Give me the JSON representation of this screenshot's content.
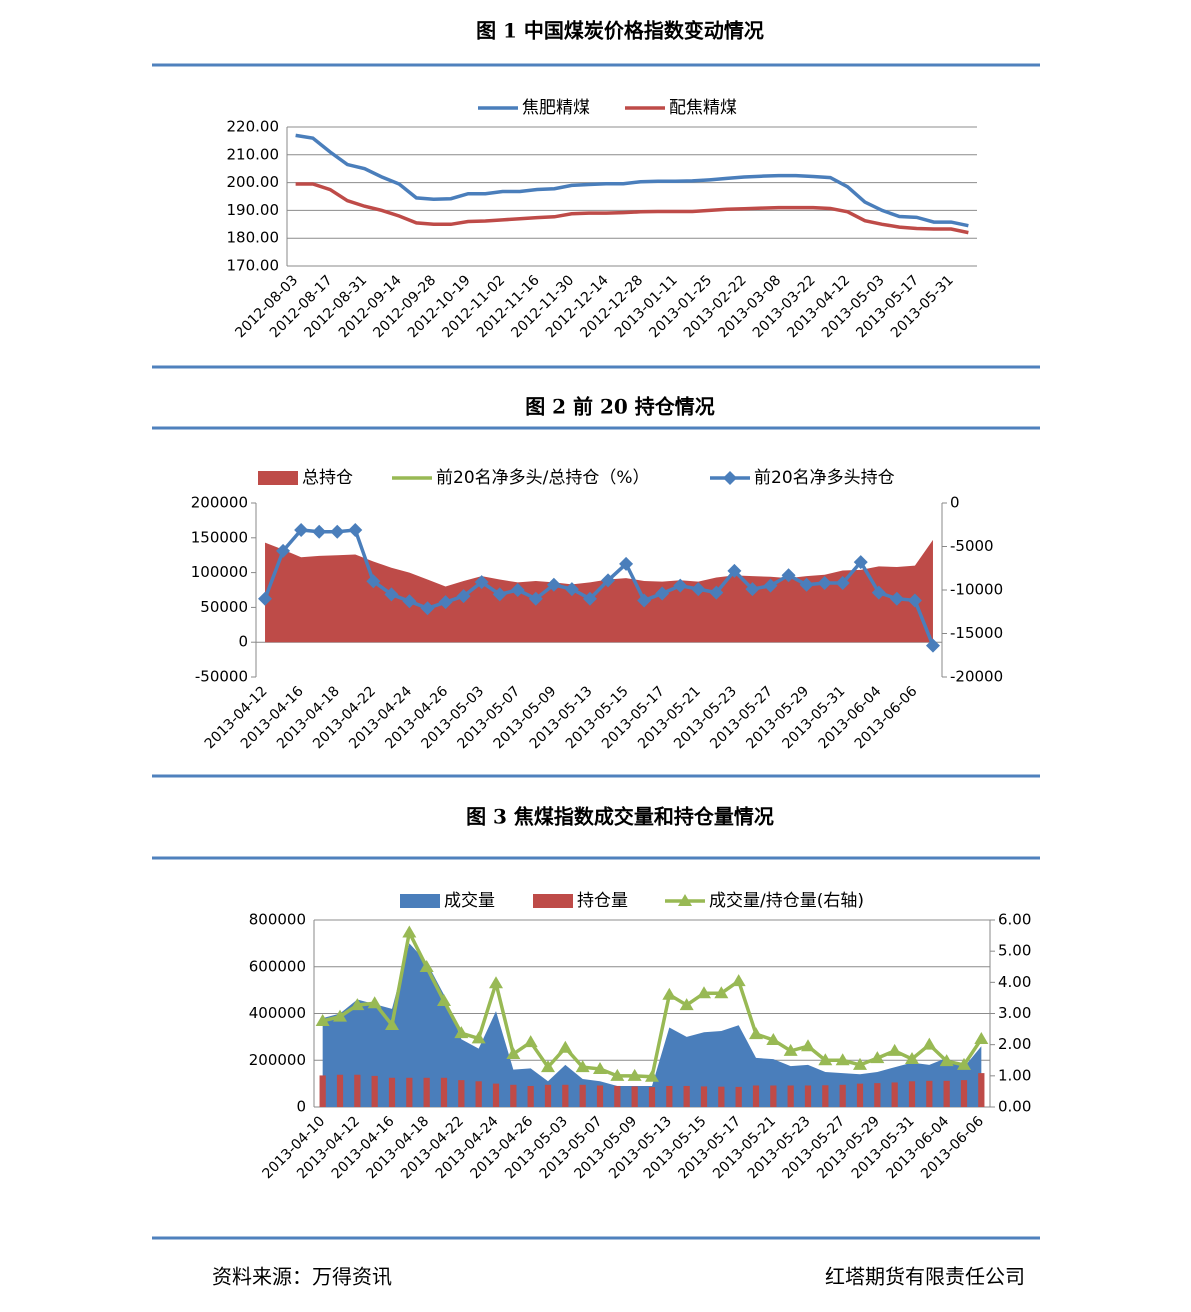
{
  "titles": [
    "图 1 中国煤炭价格指数变动情况",
    "图 2  前 20 持仓情况",
    "图 3 焦煤指数成交量和持仓量情况"
  ],
  "footer": {
    "source": "资料来源：万得资讯",
    "company": "红塔期货有限责任公司"
  },
  "chart_data": [
    {
      "type": "line",
      "grid": true,
      "categories": [
        "2012-08-03",
        null,
        "2012-08-17",
        null,
        "2012-08-31",
        null,
        "2012-09-14",
        null,
        "2012-09-28",
        null,
        "2012-10-19",
        null,
        "2012-11-02",
        null,
        "2012-11-16",
        null,
        "2012-11-30",
        null,
        "2012-12-14",
        null,
        "2012-12-28",
        null,
        "2013-01-11",
        null,
        "2013-01-25",
        null,
        "2013-02-22",
        null,
        "2013-03-08",
        null,
        "2013-03-22",
        null,
        "2013-04-12",
        null,
        "2013-05-03",
        null,
        "2013-05-17",
        null,
        "2013-05-31",
        null
      ],
      "series": [
        {
          "name": "焦肥精煤",
          "type": "line",
          "color": "#4a7ebb",
          "values": [
            217,
            216,
            211,
            206.5,
            205,
            202,
            199.5,
            194.5,
            194,
            194.2,
            196,
            196,
            196.8,
            196.8,
            197.5,
            197.8,
            199,
            199.3,
            199.6,
            199.6,
            200.3,
            200.5,
            200.5,
            200.6,
            201,
            201.5,
            202,
            202.3,
            202.5,
            202.5,
            202.2,
            201.8,
            198.5,
            193,
            190,
            187.8,
            187.5,
            185.8,
            185.8,
            184.5
          ]
        },
        {
          "name": "配焦精煤",
          "type": "line",
          "color": "#be4b48",
          "values": [
            199.5,
            199.5,
            197.5,
            193.5,
            191.5,
            190,
            188,
            185.5,
            185,
            185,
            186,
            186.2,
            186.6,
            187,
            187.4,
            187.7,
            188.8,
            189,
            189,
            189.2,
            189.5,
            189.6,
            189.6,
            189.6,
            190,
            190.4,
            190.6,
            190.8,
            191,
            191,
            191,
            190.7,
            189.5,
            186.3,
            185,
            184,
            183.5,
            183.3,
            183.3,
            182
          ]
        }
      ],
      "ylim": [
        170,
        220
      ],
      "yticks": [
        {
          "value": 170,
          "label": "170.00"
        },
        {
          "value": 180,
          "label": "180.00"
        },
        {
          "value": 190,
          "label": "190.00"
        },
        {
          "value": 200,
          "label": "200.00"
        },
        {
          "value": 210,
          "label": "210.00"
        },
        {
          "value": 220,
          "label": "220.00"
        }
      ]
    },
    {
      "type": "combo",
      "grid": false,
      "categories": [
        "2013-04-12",
        null,
        "2013-04-16",
        null,
        "2013-04-18",
        null,
        "2013-04-22",
        null,
        "2013-04-24",
        null,
        "2013-04-26",
        null,
        "2013-05-03",
        null,
        "2013-05-07",
        null,
        "2013-05-09",
        null,
        "2013-05-13",
        null,
        "2013-05-15",
        null,
        "2013-05-17",
        null,
        "2013-05-21",
        null,
        "2013-05-23",
        null,
        "2013-05-27",
        null,
        "2013-05-29",
        null,
        "2013-05-31",
        null,
        "2013-06-04",
        null,
        "2013-06-06",
        null
      ],
      "series": [
        {
          "name": "总持仓",
          "type": "area",
          "color": "#be4b48",
          "values": [
            143000,
            133000,
            122000,
            124000,
            125000,
            126000,
            116000,
            107000,
            100000,
            90000,
            80000,
            88000,
            95000,
            90000,
            86000,
            88000,
            86000,
            83000,
            86000,
            90000,
            92000,
            88000,
            87000,
            89000,
            87000,
            93000,
            96000,
            95000,
            94000,
            92000,
            95000,
            97000,
            103000,
            104000,
            109000,
            108000,
            110000,
            147000
          ]
        },
        {
          "name": "前20名净多头/总持仓（%）",
          "type": "line",
          "color": "#98b954",
          "values": [
            null,
            null,
            null,
            null,
            null,
            null,
            null,
            null,
            null,
            null,
            null,
            null,
            null,
            null,
            null,
            null,
            null,
            null,
            null,
            null,
            null,
            null,
            null,
            null,
            null,
            null,
            null,
            null,
            null,
            null,
            null,
            null,
            null,
            null,
            null,
            null,
            null,
            null
          ]
        },
        {
          "name": "前20名净多头持仓",
          "type": "line",
          "marker": "diamond",
          "axis": "y2",
          "color": "#4a7ebb",
          "values": [
            -11000,
            -5500,
            -3100,
            -3300,
            -3300,
            -3100,
            -9000,
            -10500,
            -11300,
            -12100,
            -11400,
            -10700,
            -9100,
            -10500,
            -10000,
            -11000,
            -9400,
            -9900,
            -11000,
            -8900,
            -7000,
            -11200,
            -10400,
            -9500,
            -9900,
            -10300,
            -7800,
            -9900,
            -9500,
            -8300,
            -9400,
            -9200,
            -9200,
            -6800,
            -10300,
            -11000,
            -11200,
            -16400
          ]
        }
      ],
      "ylim": [
        -50000,
        200000
      ],
      "yticks": [
        -50000,
        0,
        50000,
        100000,
        150000,
        200000
      ],
      "y2lim": [
        -20000,
        0
      ],
      "y2ticks": [
        -20000,
        -15000,
        -10000,
        -5000,
        0
      ]
    },
    {
      "type": "combo",
      "grid": true,
      "categories": [
        "2013-04-10",
        null,
        "2013-04-12",
        null,
        "2013-04-16",
        null,
        "2013-04-18",
        null,
        "2013-04-22",
        null,
        "2013-04-24",
        null,
        "2013-04-26",
        null,
        "2013-05-03",
        null,
        "2013-05-07",
        null,
        "2013-05-09",
        null,
        "2013-05-13",
        null,
        "2013-05-15",
        null,
        "2013-05-17",
        null,
        "2013-05-21",
        null,
        "2013-05-23",
        null,
        "2013-05-27",
        null,
        "2013-05-29",
        null,
        "2013-05-31",
        null,
        "2013-06-04",
        null,
        "2013-06-06"
      ],
      "series": [
        {
          "name": "成交量",
          "type": "area",
          "color": "#4a7ebb",
          "values": [
            380000,
            400000,
            460000,
            440000,
            420000,
            700000,
            620000,
            480000,
            290000,
            250000,
            410000,
            160000,
            165000,
            110000,
            180000,
            120000,
            110000,
            90000,
            90000,
            90000,
            340000,
            300000,
            320000,
            325000,
            350000,
            210000,
            205000,
            175000,
            180000,
            150000,
            145000,
            140000,
            150000,
            170000,
            190000,
            180000,
            210000,
            170000,
            260000
          ]
        },
        {
          "name": "持仓量",
          "type": "bar",
          "color": "#be4b48",
          "values": [
            135000,
            138000,
            138000,
            133000,
            125000,
            125000,
            125000,
            125000,
            115000,
            110000,
            100000,
            95000,
            90000,
            95000,
            95000,
            95000,
            92000,
            90000,
            88000,
            85000,
            90000,
            90000,
            88000,
            87000,
            86000,
            92000,
            92000,
            92000,
            92000,
            93000,
            95000,
            100000,
            102000,
            105000,
            110000,
            112000,
            112000,
            115000,
            145000
          ]
        },
        {
          "name": "成交量/持仓量(右轴)",
          "type": "line",
          "marker": "triangle",
          "axis": "y2",
          "color": "#98b954",
          "values": [
            2.76,
            2.9,
            3.27,
            3.33,
            2.63,
            5.6,
            4.49,
            3.4,
            2.37,
            2.2,
            3.97,
            1.7,
            2.08,
            1.28,
            1.9,
            1.28,
            1.22,
            1.0,
            1.0,
            0.97,
            3.6,
            3.27,
            3.65,
            3.65,
            4.04,
            2.34,
            2.15,
            1.8,
            1.95,
            1.5,
            1.5,
            1.35,
            1.57,
            1.8,
            1.54,
            2.0,
            1.47,
            1.35,
            2.18
          ]
        }
      ],
      "ylim": [
        0,
        800000
      ],
      "yticks": [
        0,
        200000,
        400000,
        600000,
        800000
      ],
      "y2lim": [
        0,
        6
      ],
      "y2ticks": [
        {
          "value": 0,
          "label": "0.00"
        },
        {
          "value": 1,
          "label": "1.00"
        },
        {
          "value": 2,
          "label": "2.00"
        },
        {
          "value": 3,
          "label": "3.00"
        },
        {
          "value": 4,
          "label": "4.00"
        },
        {
          "value": 5,
          "label": "5.00"
        },
        {
          "value": 6,
          "label": "6.00"
        }
      ]
    }
  ]
}
